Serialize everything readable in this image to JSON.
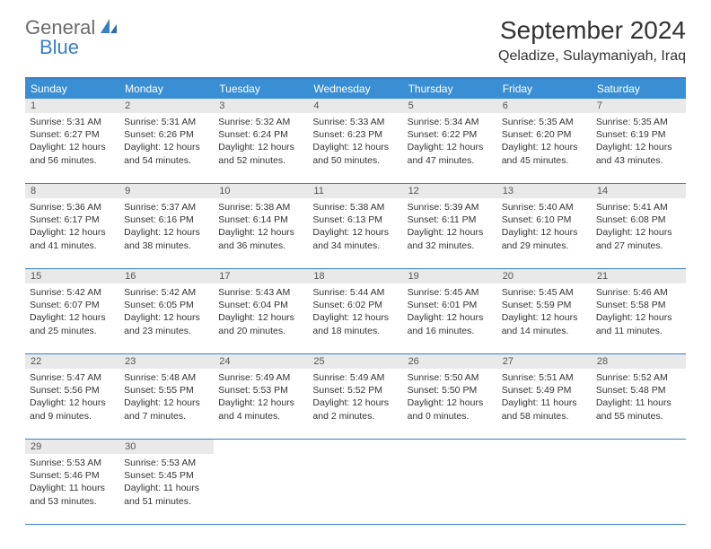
{
  "logo": {
    "text1": "General",
    "text2": "Blue"
  },
  "title": "September 2024",
  "location": "Qeladize, Sulaymaniyah, Iraq",
  "colors": {
    "header_bg": "#3a8fd4",
    "border": "#3a7fc4",
    "daynum_bg": "#e9e9e9",
    "text": "#333333",
    "logo_gray": "#6b6b6b",
    "logo_blue": "#3a7fc4",
    "page_bg": "#ffffff"
  },
  "typography": {
    "title_fontsize": 28,
    "location_fontsize": 16,
    "weekday_fontsize": 12,
    "daynum_fontsize": 11,
    "body_fontsize": 10.5
  },
  "layout": {
    "columns": 7,
    "rows": 5,
    "cell_min_height": 78
  },
  "weekdays": [
    "Sunday",
    "Monday",
    "Tuesday",
    "Wednesday",
    "Thursday",
    "Friday",
    "Saturday"
  ],
  "weeks": [
    [
      {
        "n": "1",
        "sunrise": "Sunrise: 5:31 AM",
        "sunset": "Sunset: 6:27 PM",
        "daylight": "Daylight: 12 hours and 56 minutes."
      },
      {
        "n": "2",
        "sunrise": "Sunrise: 5:31 AM",
        "sunset": "Sunset: 6:26 PM",
        "daylight": "Daylight: 12 hours and 54 minutes."
      },
      {
        "n": "3",
        "sunrise": "Sunrise: 5:32 AM",
        "sunset": "Sunset: 6:24 PM",
        "daylight": "Daylight: 12 hours and 52 minutes."
      },
      {
        "n": "4",
        "sunrise": "Sunrise: 5:33 AM",
        "sunset": "Sunset: 6:23 PM",
        "daylight": "Daylight: 12 hours and 50 minutes."
      },
      {
        "n": "5",
        "sunrise": "Sunrise: 5:34 AM",
        "sunset": "Sunset: 6:22 PM",
        "daylight": "Daylight: 12 hours and 47 minutes."
      },
      {
        "n": "6",
        "sunrise": "Sunrise: 5:35 AM",
        "sunset": "Sunset: 6:20 PM",
        "daylight": "Daylight: 12 hours and 45 minutes."
      },
      {
        "n": "7",
        "sunrise": "Sunrise: 5:35 AM",
        "sunset": "Sunset: 6:19 PM",
        "daylight": "Daylight: 12 hours and 43 minutes."
      }
    ],
    [
      {
        "n": "8",
        "sunrise": "Sunrise: 5:36 AM",
        "sunset": "Sunset: 6:17 PM",
        "daylight": "Daylight: 12 hours and 41 minutes."
      },
      {
        "n": "9",
        "sunrise": "Sunrise: 5:37 AM",
        "sunset": "Sunset: 6:16 PM",
        "daylight": "Daylight: 12 hours and 38 minutes."
      },
      {
        "n": "10",
        "sunrise": "Sunrise: 5:38 AM",
        "sunset": "Sunset: 6:14 PM",
        "daylight": "Daylight: 12 hours and 36 minutes."
      },
      {
        "n": "11",
        "sunrise": "Sunrise: 5:38 AM",
        "sunset": "Sunset: 6:13 PM",
        "daylight": "Daylight: 12 hours and 34 minutes."
      },
      {
        "n": "12",
        "sunrise": "Sunrise: 5:39 AM",
        "sunset": "Sunset: 6:11 PM",
        "daylight": "Daylight: 12 hours and 32 minutes."
      },
      {
        "n": "13",
        "sunrise": "Sunrise: 5:40 AM",
        "sunset": "Sunset: 6:10 PM",
        "daylight": "Daylight: 12 hours and 29 minutes."
      },
      {
        "n": "14",
        "sunrise": "Sunrise: 5:41 AM",
        "sunset": "Sunset: 6:08 PM",
        "daylight": "Daylight: 12 hours and 27 minutes."
      }
    ],
    [
      {
        "n": "15",
        "sunrise": "Sunrise: 5:42 AM",
        "sunset": "Sunset: 6:07 PM",
        "daylight": "Daylight: 12 hours and 25 minutes."
      },
      {
        "n": "16",
        "sunrise": "Sunrise: 5:42 AM",
        "sunset": "Sunset: 6:05 PM",
        "daylight": "Daylight: 12 hours and 23 minutes."
      },
      {
        "n": "17",
        "sunrise": "Sunrise: 5:43 AM",
        "sunset": "Sunset: 6:04 PM",
        "daylight": "Daylight: 12 hours and 20 minutes."
      },
      {
        "n": "18",
        "sunrise": "Sunrise: 5:44 AM",
        "sunset": "Sunset: 6:02 PM",
        "daylight": "Daylight: 12 hours and 18 minutes."
      },
      {
        "n": "19",
        "sunrise": "Sunrise: 5:45 AM",
        "sunset": "Sunset: 6:01 PM",
        "daylight": "Daylight: 12 hours and 16 minutes."
      },
      {
        "n": "20",
        "sunrise": "Sunrise: 5:45 AM",
        "sunset": "Sunset: 5:59 PM",
        "daylight": "Daylight: 12 hours and 14 minutes."
      },
      {
        "n": "21",
        "sunrise": "Sunrise: 5:46 AM",
        "sunset": "Sunset: 5:58 PM",
        "daylight": "Daylight: 12 hours and 11 minutes."
      }
    ],
    [
      {
        "n": "22",
        "sunrise": "Sunrise: 5:47 AM",
        "sunset": "Sunset: 5:56 PM",
        "daylight": "Daylight: 12 hours and 9 minutes."
      },
      {
        "n": "23",
        "sunrise": "Sunrise: 5:48 AM",
        "sunset": "Sunset: 5:55 PM",
        "daylight": "Daylight: 12 hours and 7 minutes."
      },
      {
        "n": "24",
        "sunrise": "Sunrise: 5:49 AM",
        "sunset": "Sunset: 5:53 PM",
        "daylight": "Daylight: 12 hours and 4 minutes."
      },
      {
        "n": "25",
        "sunrise": "Sunrise: 5:49 AM",
        "sunset": "Sunset: 5:52 PM",
        "daylight": "Daylight: 12 hours and 2 minutes."
      },
      {
        "n": "26",
        "sunrise": "Sunrise: 5:50 AM",
        "sunset": "Sunset: 5:50 PM",
        "daylight": "Daylight: 12 hours and 0 minutes."
      },
      {
        "n": "27",
        "sunrise": "Sunrise: 5:51 AM",
        "sunset": "Sunset: 5:49 PM",
        "daylight": "Daylight: 11 hours and 58 minutes."
      },
      {
        "n": "28",
        "sunrise": "Sunrise: 5:52 AM",
        "sunset": "Sunset: 5:48 PM",
        "daylight": "Daylight: 11 hours and 55 minutes."
      }
    ],
    [
      {
        "n": "29",
        "sunrise": "Sunrise: 5:53 AM",
        "sunset": "Sunset: 5:46 PM",
        "daylight": "Daylight: 11 hours and 53 minutes."
      },
      {
        "n": "30",
        "sunrise": "Sunrise: 5:53 AM",
        "sunset": "Sunset: 5:45 PM",
        "daylight": "Daylight: 11 hours and 51 minutes."
      },
      null,
      null,
      null,
      null,
      null
    ]
  ]
}
